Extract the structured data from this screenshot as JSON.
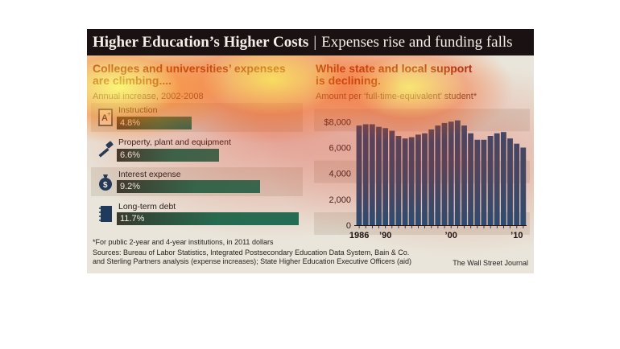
{
  "header": {
    "title": "Higher Education’s Higher Costs",
    "separator": "|",
    "subtitle": "Expenses rise and funding falls"
  },
  "left_panel": {
    "title_line1": "Colleges and universities’ expenses",
    "title_line2": "are climbing....",
    "subtitle": "Annual increase, 2002-2008"
  },
  "right_panel": {
    "title_line1": "While state and local support",
    "title_line2": "is declining.",
    "subtitle": "Amount per ‘full-time-equivalent’ student*"
  },
  "footnote": "*For public 2-year and 4-year institutions, in 2011 dollars",
  "sources": [
    "Sources: Bureau of Labor Statistics, Integrated Postsecondary Education Data System, Bain & Co.",
    "and Sterling Partners analysis (expense increases); State Higher Education Executive Officers (aid)"
  ],
  "credit": "The Wall Street Journal",
  "colors": {
    "header_bg": "#1a1212",
    "title_red": "#8b2a1a",
    "bar_green": "#15735a",
    "column_blue": "#1f4e78",
    "panel_bg": "#e9e5da"
  },
  "icons": [
    "grade-paper-icon",
    "hammer-icon",
    "money-bag-icon",
    "notebook-icon"
  ],
  "chart_data": [
    {
      "type": "bar",
      "orientation": "horizontal",
      "title": "Colleges and universities’ expenses are climbing....",
      "subtitle": "Annual increase, 2002-2008",
      "unit": "%",
      "categories": [
        "Instruction",
        "Property, plant and equipment",
        "Interest expense",
        "Long-term debt"
      ],
      "values": [
        4.8,
        6.6,
        9.2,
        11.7
      ],
      "labels": [
        "4.8%",
        "6.6%",
        "9.2%",
        "11.7%"
      ],
      "xlim": [
        0,
        11.7
      ],
      "grid": false
    },
    {
      "type": "bar",
      "title": "While state and local support is declining.",
      "subtitle": "Amount per ‘full-time-equivalent’ student*",
      "x": [
        1986,
        1987,
        1988,
        1989,
        1990,
        1991,
        1992,
        1993,
        1994,
        1995,
        1996,
        1997,
        1998,
        1999,
        2000,
        2001,
        2002,
        2003,
        2004,
        2005,
        2006,
        2007,
        2008,
        2009,
        2010,
        2011
      ],
      "values": [
        7700,
        7800,
        7800,
        7600,
        7500,
        7300,
        6900,
        6700,
        6800,
        7000,
        7100,
        7400,
        7700,
        7900,
        8000,
        8100,
        7700,
        7100,
        6600,
        6600,
        6900,
        7100,
        7200,
        6700,
        6300,
        6000
      ],
      "x_tick_labels": [
        {
          "x": 1986,
          "label": "1986"
        },
        {
          "x": 1990,
          "label": "’90"
        },
        {
          "x": 2000,
          "label": "’00"
        },
        {
          "x": 2010,
          "label": "’10"
        }
      ],
      "y_ticks": [
        {
          "value": 0,
          "label": "0"
        },
        {
          "value": 2000,
          "label": "2,000"
        },
        {
          "value": 4000,
          "label": "4,000"
        },
        {
          "value": 6000,
          "label": "6,000"
        },
        {
          "value": 8000,
          "label": "$8,000"
        }
      ],
      "ylim": [
        0,
        9200
      ],
      "grid": false
    }
  ]
}
